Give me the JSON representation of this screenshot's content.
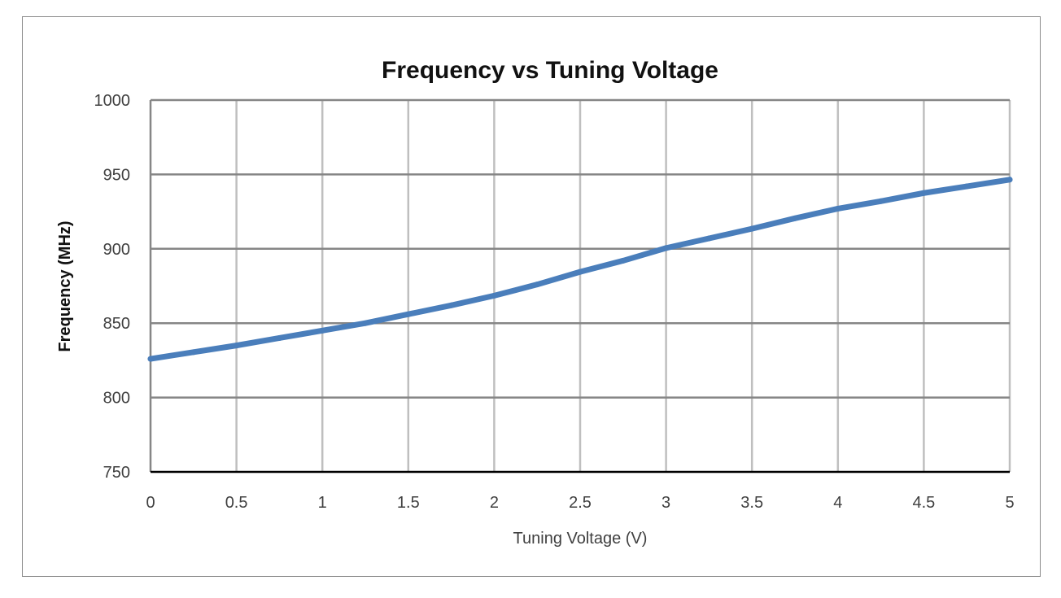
{
  "chart_data": {
    "type": "line",
    "title": "Frequency vs Tuning Voltage",
    "xlabel": "Tuning Voltage (V)",
    "ylabel": "Frequency (MHz)",
    "xlim": [
      0,
      5
    ],
    "ylim": [
      750,
      1000
    ],
    "x_ticks": [
      "0",
      "0.5",
      "1",
      "1.5",
      "2",
      "2.5",
      "3",
      "3.5",
      "4",
      "4.5",
      "5"
    ],
    "y_ticks": [
      "750",
      "800",
      "850",
      "900",
      "950",
      "1000"
    ],
    "grid": true,
    "legend": "none",
    "series": [
      {
        "color": "#4a7ebb",
        "x": [
          0,
          0.25,
          0.5,
          0.75,
          1,
          1.25,
          1.5,
          1.75,
          2,
          2.25,
          2.5,
          2.75,
          3,
          3.25,
          3.5,
          3.75,
          4,
          4.25,
          4.5,
          4.75,
          5
        ],
        "y": [
          826,
          830.5,
          835,
          840,
          845,
          850,
          856,
          862,
          868.5,
          876,
          884.5,
          892,
          900.5,
          907,
          913.5,
          920.5,
          927,
          932,
          937.5,
          942,
          946.5
        ]
      }
    ]
  }
}
